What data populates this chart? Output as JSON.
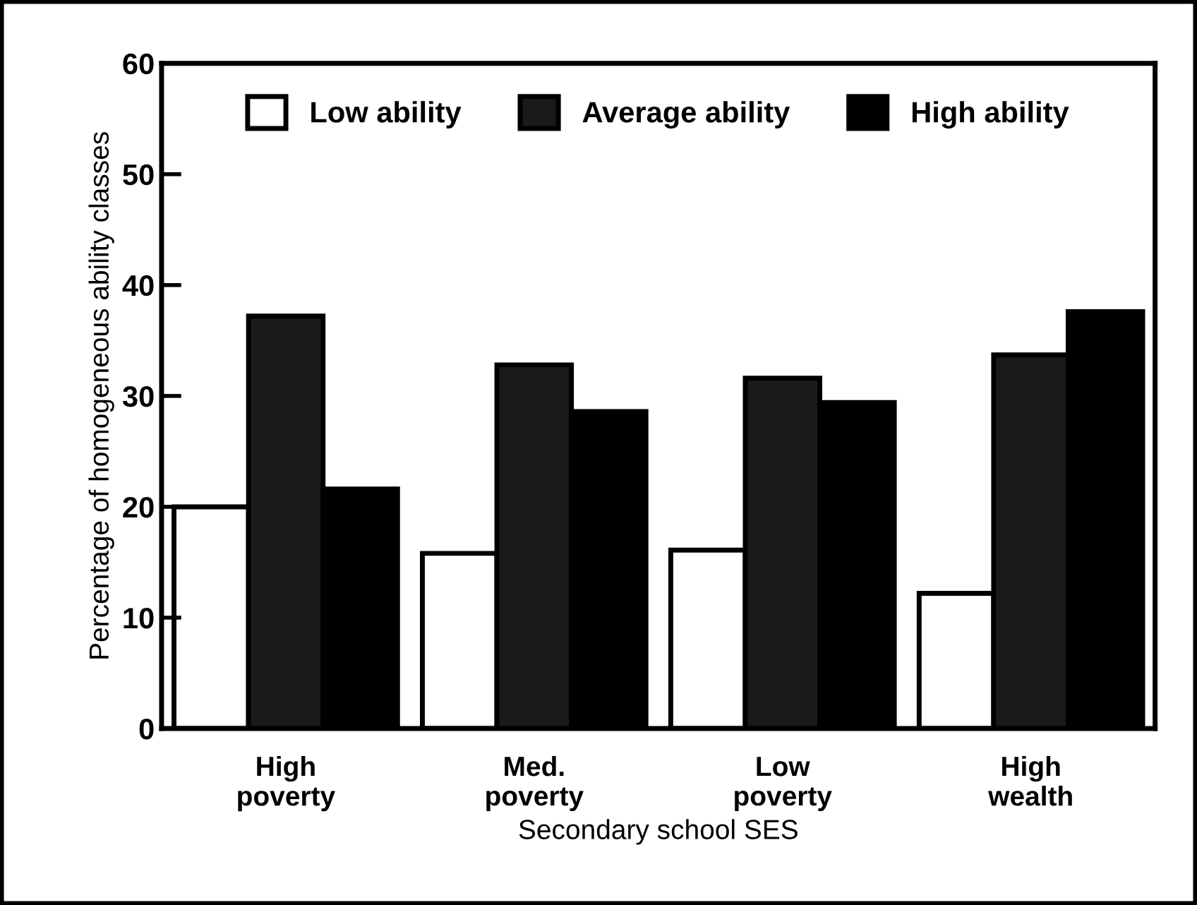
{
  "chart_data": {
    "type": "bar",
    "xlabel": "Secondary school SES",
    "ylabel": "Percentage of homogeneous ability classes",
    "categories": [
      "High\npoverty",
      "Med.\npoverty",
      "Low\npoverty",
      "High\nwealth"
    ],
    "series": [
      {
        "name": "Low ability",
        "color": "#ffffff",
        "values": [
          20,
          15.8,
          16.1,
          12.2
        ]
      },
      {
        "name": "Average ability",
        "color": "#1a1a1a",
        "values": [
          37.2,
          32.8,
          31.6,
          33.7
        ]
      },
      {
        "name": "High ability",
        "color": "#000000",
        "values": [
          21.6,
          28.6,
          29.4,
          37.6
        ]
      }
    ],
    "ylim": [
      0,
      60
    ],
    "yticks": [
      0,
      10,
      20,
      30,
      40,
      50,
      60
    ],
    "grid": false,
    "legend": "top"
  }
}
